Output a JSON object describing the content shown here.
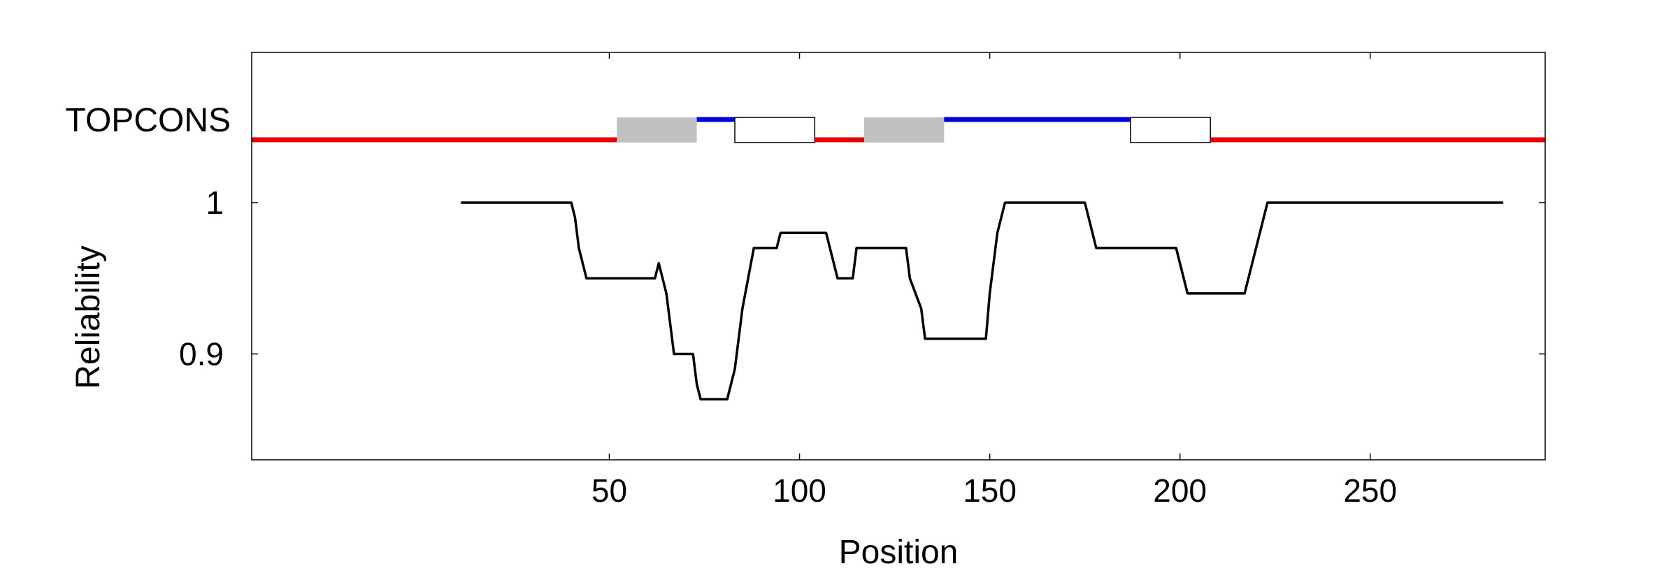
{
  "chart_data": {
    "type": "line",
    "xlabel": "Position",
    "ylabel": "Reliability",
    "track_label": "TOPCONS",
    "xlim": [
      -44,
      296
    ],
    "ylim": [
      0.83,
      1.0
    ],
    "xticks": [
      50,
      100,
      150,
      200,
      250
    ],
    "yticks": [
      0.9,
      1
    ],
    "ytick_labels": [
      "0.9",
      "1"
    ],
    "grid": false,
    "colors": {
      "inside": "#e00000",
      "outside": "#0000dd",
      "helix_in_to_out": "#c0c0c0",
      "helix_out_to_in": "#ffffff",
      "reliability_line": "#000000"
    },
    "topology": [
      {
        "kind": "inside",
        "start": -44,
        "end": 52
      },
      {
        "kind": "helix_in_to_out",
        "start": 52,
        "end": 73
      },
      {
        "kind": "outside",
        "start": 73,
        "end": 83
      },
      {
        "kind": "helix_out_to_in",
        "start": 83,
        "end": 104
      },
      {
        "kind": "inside",
        "start": 104,
        "end": 117
      },
      {
        "kind": "helix_in_to_out",
        "start": 117,
        "end": 138
      },
      {
        "kind": "outside",
        "start": 138,
        "end": 187
      },
      {
        "kind": "helix_out_to_in",
        "start": 187,
        "end": 208
      },
      {
        "kind": "inside",
        "start": 208,
        "end": 296
      }
    ],
    "reliability": {
      "x": [
        11,
        40,
        41,
        42,
        44,
        62,
        63,
        65,
        67,
        72,
        73,
        74,
        81,
        83,
        85,
        88,
        94,
        95,
        107,
        109,
        110,
        114,
        115,
        128,
        129,
        132,
        133,
        149,
        150,
        152,
        154,
        175,
        176,
        178,
        199,
        200,
        202,
        217,
        218,
        220,
        222,
        223,
        285
      ],
      "y": [
        1.0,
        1.0,
        0.99,
        0.97,
        0.95,
        0.95,
        0.96,
        0.94,
        0.9,
        0.9,
        0.88,
        0.87,
        0.87,
        0.89,
        0.93,
        0.97,
        0.97,
        0.98,
        0.98,
        0.96,
        0.95,
        0.95,
        0.97,
        0.97,
        0.95,
        0.93,
        0.91,
        0.91,
        0.94,
        0.98,
        1.0,
        1.0,
        0.99,
        0.97,
        0.97,
        0.96,
        0.94,
        0.94,
        0.95,
        0.97,
        0.99,
        1.0,
        1.0
      ]
    }
  }
}
